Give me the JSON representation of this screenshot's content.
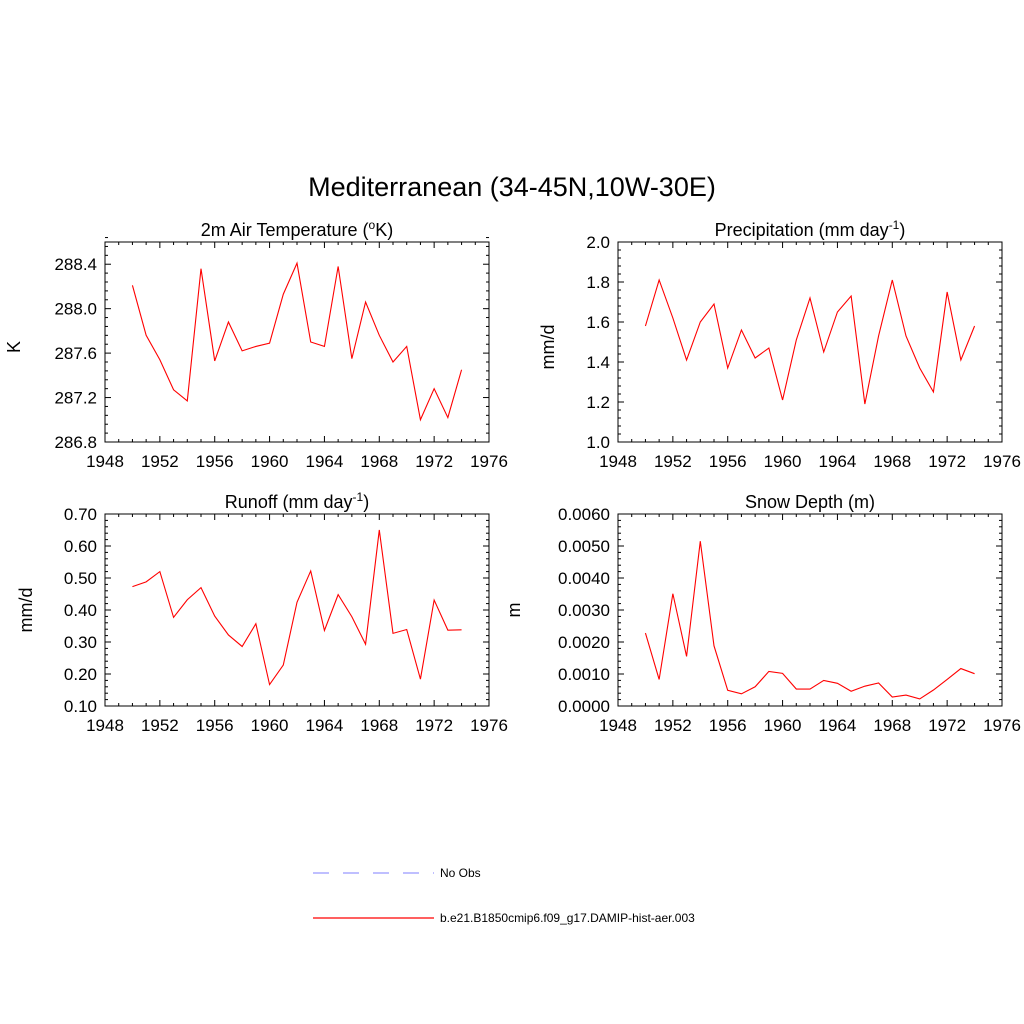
{
  "title": "Mediterranean (34-45N,10W-30E)",
  "colors": {
    "model": "#ff0000",
    "obs": "#9999ff",
    "axis": "#000000"
  },
  "legend": [
    {
      "label": "No Obs",
      "style": "dashed",
      "color": "#9999ff"
    },
    {
      "label": "b.e21.B1850cmip6.f09_g17.DAMIP-hist-aer.003",
      "style": "solid",
      "color": "#ff0000"
    }
  ],
  "chart_data": [
    {
      "type": "line",
      "title": "2m Air Temperature (",
      "title_sup": "o",
      "title_after": "K)",
      "title_sup2": "",
      "title_tail": "",
      "ylabel": "K",
      "xlim": [
        1948,
        1976
      ],
      "ylim": [
        286.8,
        288.6
      ],
      "xticks": [
        1948,
        1952,
        1956,
        1960,
        1964,
        1968,
        1972,
        1976
      ],
      "yticks": [
        286.8,
        287.2,
        287.6,
        288.0,
        288.4
      ],
      "ytick_labels": [
        "286.8",
        "287.2",
        "287.6",
        "288.0",
        "288.4"
      ],
      "series": [
        {
          "x": [
            1950,
            1951,
            1952,
            1953,
            1954,
            1955,
            1956,
            1957,
            1958,
            1959,
            1960,
            1961,
            1962,
            1963,
            1964,
            1965,
            1966,
            1967,
            1968,
            1969,
            1970,
            1971,
            1972,
            1973,
            1974
          ],
          "values": [
            288.21,
            287.76,
            287.54,
            287.27,
            287.17,
            288.36,
            287.53,
            287.88,
            287.62,
            287.66,
            287.69,
            288.13,
            288.41,
            287.7,
            287.66,
            288.38,
            287.55,
            288.06,
            287.76,
            287.52,
            287.66,
            287.0,
            287.28,
            287.02,
            287.45
          ]
        }
      ]
    },
    {
      "type": "line",
      "title": "Precipitation (mm day",
      "title_sup": "-1",
      "title_after": ")",
      "ylabel": "mm/d",
      "xlim": [
        1948,
        1976
      ],
      "ylim": [
        1.0,
        2.0
      ],
      "xticks": [
        1948,
        1952,
        1956,
        1960,
        1964,
        1968,
        1972,
        1976
      ],
      "yticks": [
        1.0,
        1.2,
        1.4,
        1.6,
        1.8,
        2.0
      ],
      "ytick_labels": [
        "1.0",
        "1.2",
        "1.4",
        "1.6",
        "1.8",
        "2.0"
      ],
      "series": [
        {
          "x": [
            1950,
            1951,
            1952,
            1953,
            1954,
            1955,
            1956,
            1957,
            1958,
            1959,
            1960,
            1961,
            1962,
            1963,
            1964,
            1965,
            1966,
            1967,
            1968,
            1969,
            1970,
            1971,
            1972,
            1973,
            1974
          ],
          "values": [
            1.58,
            1.81,
            1.62,
            1.41,
            1.6,
            1.69,
            1.37,
            1.56,
            1.42,
            1.47,
            1.21,
            1.51,
            1.72,
            1.45,
            1.65,
            1.73,
            1.19,
            1.53,
            1.81,
            1.53,
            1.37,
            1.25,
            1.75,
            1.41,
            1.58
          ]
        }
      ]
    },
    {
      "type": "line",
      "title": "Runoff (mm day",
      "title_sup": "-1",
      "title_after": ")",
      "ylabel": "mm/d",
      "xlim": [
        1948,
        1976
      ],
      "ylim": [
        0.1,
        0.7
      ],
      "xticks": [
        1948,
        1952,
        1956,
        1960,
        1964,
        1968,
        1972,
        1976
      ],
      "yticks": [
        0.1,
        0.2,
        0.3,
        0.4,
        0.5,
        0.6,
        0.7
      ],
      "ytick_labels": [
        "0.10",
        "0.20",
        "0.30",
        "0.40",
        "0.50",
        "0.60",
        "0.70"
      ],
      "series": [
        {
          "x": [
            1950,
            1951,
            1952,
            1953,
            1954,
            1955,
            1956,
            1957,
            1958,
            1959,
            1960,
            1961,
            1962,
            1963,
            1964,
            1965,
            1966,
            1967,
            1968,
            1969,
            1970,
            1971,
            1972,
            1973,
            1974
          ],
          "values": [
            0.473,
            0.488,
            0.52,
            0.377,
            0.432,
            0.47,
            0.381,
            0.322,
            0.286,
            0.357,
            0.167,
            0.228,
            0.424,
            0.522,
            0.336,
            0.448,
            0.379,
            0.293,
            0.65,
            0.327,
            0.339,
            0.184,
            0.431,
            0.337,
            0.338
          ]
        }
      ]
    },
    {
      "type": "line",
      "title": "Snow Depth (m)",
      "title_sup": "",
      "title_after": "",
      "ylabel": "m",
      "xlim": [
        1948,
        1976
      ],
      "ylim": [
        0.0,
        0.006
      ],
      "xticks": [
        1948,
        1952,
        1956,
        1960,
        1964,
        1968,
        1972,
        1976
      ],
      "yticks": [
        0.0,
        0.001,
        0.002,
        0.003,
        0.004,
        0.005,
        0.006
      ],
      "ytick_labels": [
        "0.0000",
        "0.0010",
        "0.0020",
        "0.0030",
        "0.0040",
        "0.0050",
        "0.0060"
      ],
      "series": [
        {
          "x": [
            1950,
            1951,
            1952,
            1953,
            1954,
            1955,
            1956,
            1957,
            1958,
            1959,
            1960,
            1961,
            1962,
            1963,
            1964,
            1965,
            1966,
            1967,
            1968,
            1969,
            1970,
            1971,
            1972,
            1973,
            1974
          ],
          "values": [
            0.00228,
            0.00083,
            0.00351,
            0.00155,
            0.00515,
            0.00188,
            0.00049,
            0.00038,
            0.0006,
            0.00108,
            0.00102,
            0.00053,
            0.00053,
            0.0008,
            0.00071,
            0.00046,
            0.00062,
            0.00072,
            0.00028,
            0.00034,
            0.00022,
            0.0005,
            0.00083,
            0.00117,
            0.00101
          ]
        }
      ]
    }
  ]
}
